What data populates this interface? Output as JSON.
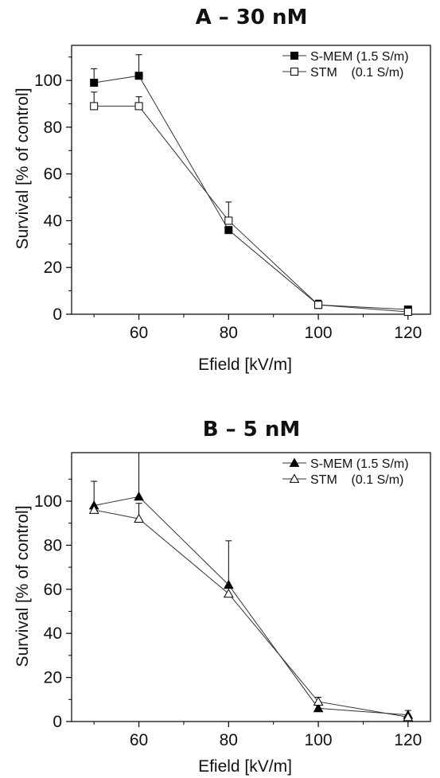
{
  "chart_data": [
    {
      "type": "line",
      "title": "A – 30 nM",
      "xlabel": "Efield [kV/m]",
      "ylabel": "Survival [% of control]",
      "xlim": [
        45,
        125
      ],
      "ylim": [
        0,
        115
      ],
      "xticks": [
        60,
        80,
        100,
        120
      ],
      "yticks": [
        0,
        20,
        40,
        60,
        80,
        100
      ],
      "legend_position": "top-right",
      "series": [
        {
          "name": "S-MEM (1.5 S/m)",
          "marker": "square-filled",
          "x": [
            50,
            60,
            80,
            100,
            120
          ],
          "y": [
            99,
            102,
            36,
            4,
            2
          ],
          "err": [
            6,
            9,
            0,
            2,
            0
          ]
        },
        {
          "name": "STM    (0.1 S/m)",
          "marker": "square-open",
          "x": [
            50,
            60,
            80,
            100,
            120
          ],
          "y": [
            89,
            89,
            40,
            4,
            1
          ],
          "err": [
            6,
            4,
            8,
            2,
            0
          ]
        }
      ]
    },
    {
      "type": "line",
      "title": "B – 5 nM",
      "xlabel": "Efield [kV/m]",
      "ylabel": "Survival [% of control]",
      "xlim": [
        45,
        125
      ],
      "ylim": [
        0,
        122
      ],
      "xticks": [
        60,
        80,
        100,
        120
      ],
      "yticks": [
        0,
        20,
        40,
        60,
        80,
        100
      ],
      "legend_position": "top-right",
      "series": [
        {
          "name": "S-MEM (1.5 S/m)",
          "marker": "triangle-filled",
          "x": [
            50,
            60,
            80,
            100,
            120
          ],
          "y": [
            98,
            102,
            62,
            6,
            3
          ],
          "err": [
            11,
            20,
            20,
            2,
            2
          ]
        },
        {
          "name": "STM    (0.1 S/m)",
          "marker": "triangle-open",
          "x": [
            50,
            60,
            80,
            100,
            120
          ],
          "y": [
            96,
            92,
            58,
            9,
            2
          ],
          "err": [
            0,
            7,
            0,
            2,
            0
          ]
        }
      ]
    }
  ]
}
